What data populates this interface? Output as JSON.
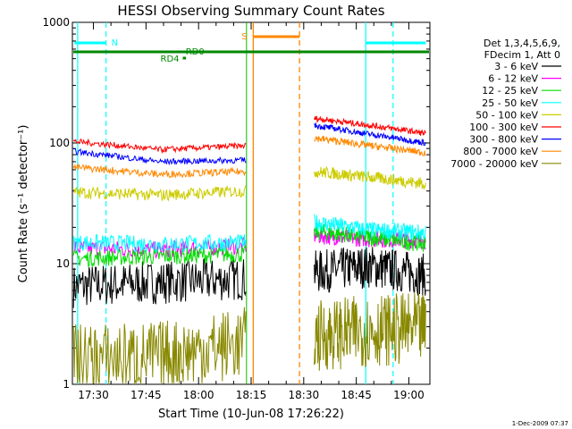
{
  "chart_data": {
    "type": "line",
    "title": "HESSI Observing Summary Count Rates",
    "xlabel": "Start Time (10-Jun-08 17:26:22)",
    "ylabel": "Count Rate (s⁻¹ detector⁻¹)",
    "y_scale": "log",
    "ylim": [
      1,
      1000
    ],
    "xlim_minutes": [
      17.4,
      19.1
    ],
    "x_ticks": [
      {
        "label": "17:30",
        "t": 17.5
      },
      {
        "label": "17:45",
        "t": 17.75
      },
      {
        "label": "18:00",
        "t": 18.0
      },
      {
        "label": "18:15",
        "t": 18.25
      },
      {
        "label": "18:30",
        "t": 18.5
      },
      {
        "label": "18:45",
        "t": 18.75
      },
      {
        "label": "19:00",
        "t": 19.0
      }
    ],
    "y_ticks": [
      {
        "label": "1",
        "v": 1
      },
      {
        "label": "10",
        "v": 10
      },
      {
        "label": "100",
        "v": 100
      },
      {
        "label": "1000",
        "v": 1000
      }
    ],
    "legend_header": [
      "Det 1,3,4,5,6,9,",
      "FDecim 1, Att 0"
    ],
    "legend_position": "right",
    "series": [
      {
        "name": "3 - 6 keV",
        "color": "#000000",
        "pre": [
          6.5,
          7.0,
          7.5
        ],
        "post": [
          8.5,
          9.5,
          8.0
        ],
        "noise": 0.18
      },
      {
        "name": "6 - 12 keV",
        "color": "#ff00ff",
        "pre": [
          13.5,
          13.0,
          14.0
        ],
        "post": [
          17.0,
          16.0,
          15.5
        ],
        "noise": 0.07
      },
      {
        "name": "12 - 25 keV",
        "color": "#00dd00",
        "pre": [
          11.0,
          11.5,
          12.0
        ],
        "post": [
          18.5,
          16.5,
          14.5
        ],
        "noise": 0.07
      },
      {
        "name": "25 - 50 keV",
        "color": "#00ffff",
        "pre": [
          15.0,
          14.5,
          15.0
        ],
        "post": [
          22.0,
          19.0,
          18.0
        ],
        "noise": 0.07
      },
      {
        "name": "50 - 100 keV",
        "color": "#cccc00",
        "pre": [
          39.0,
          37.0,
          40.0
        ],
        "post": [
          58.0,
          52.0,
          46.0
        ],
        "noise": 0.05
      },
      {
        "name": "100 - 300 keV",
        "color": "#ff0000",
        "pre": [
          103.0,
          88.0,
          95.0
        ],
        "post": [
          160.0,
          140.0,
          120.0
        ],
        "noise": 0.025
      },
      {
        "name": "300 - 800 keV",
        "color": "#0000ff",
        "pre": [
          85.0,
          70.0,
          72.0
        ],
        "post": [
          140.0,
          118.0,
          100.0
        ],
        "noise": 0.025
      },
      {
        "name": "800 - 7000 keV",
        "color": "#ff8800",
        "pre": [
          63.0,
          55.0,
          58.0
        ],
        "post": [
          110.0,
          95.0,
          83.0
        ],
        "noise": 0.03
      },
      {
        "name": "7000 - 20000 keV",
        "color": "#888800",
        "pre": [
          1.6,
          1.7,
          2.2
        ],
        "post": [
          2.5,
          2.8,
          2.9
        ],
        "noise": 0.3
      }
    ],
    "annotations": [
      {
        "label": "N",
        "color": "#00ffff"
      },
      {
        "label": "S",
        "color": "#ff8800"
      },
      {
        "label": "RD0",
        "color": "#008800"
      },
      {
        "label": "RD4",
        "color": "#008800"
      }
    ]
  },
  "footer": {
    "date": "1-Dec-2009 07:37"
  }
}
